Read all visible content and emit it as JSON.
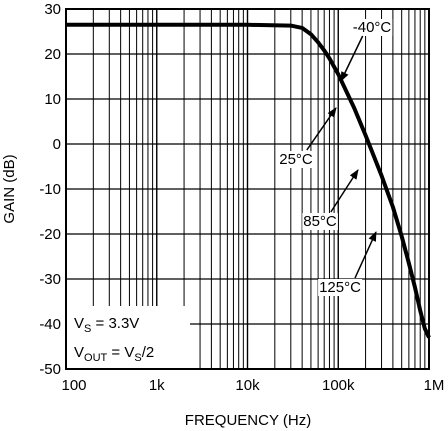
{
  "chart_data": {
    "type": "line",
    "xscale": "log",
    "xlim": [
      100,
      1000000
    ],
    "ylim": [
      -50,
      30
    ],
    "xlabel": "FREQUENCY (Hz)",
    "ylabel": "GAIN (dB)",
    "x_ticks": [
      {
        "value": 100,
        "label": "100"
      },
      {
        "value": 1000,
        "label": "1k"
      },
      {
        "value": 10000,
        "label": "10k"
      },
      {
        "value": 100000,
        "label": "100k"
      },
      {
        "value": 1000000,
        "label": "1M"
      }
    ],
    "y_ticks": [
      30,
      20,
      10,
      0,
      -10,
      -20,
      -30,
      -40,
      -50
    ],
    "grid": true,
    "series": [
      {
        "x": [
          100,
          1000,
          10000,
          30000,
          40000,
          50000,
          60000,
          70000,
          80000,
          100000,
          150000,
          200000,
          300000,
          400000,
          500000,
          600000,
          700000,
          800000,
          900000,
          1000000
        ],
        "y": [
          26.5,
          26.5,
          26.5,
          26.3,
          25.8,
          24.4,
          22.6,
          20.8,
          19.0,
          15.5,
          8.0,
          1.9,
          -7.0,
          -14.0,
          -20.5,
          -26.5,
          -31.8,
          -37.0,
          -41.0,
          -43.0
        ]
      }
    ],
    "annotations": [
      {
        "text": "-40°C",
        "x": 83000,
        "y": 15
      },
      {
        "text": "25°C",
        "x": 110000,
        "y": 9.5
      },
      {
        "text": "85°C",
        "x": 175000,
        "y": -5.5
      },
      {
        "text": "125°C",
        "x": 250000,
        "y": -19.5
      }
    ],
    "conditions": {
      "vs_label": "V",
      "vs_sub": "S",
      "vs_value": " = 3.3V",
      "vout_label": "V",
      "vout_sub": "OUT",
      "vout_eq": " = V",
      "vout_eq_sub": "S",
      "vout_value": "/2"
    }
  }
}
